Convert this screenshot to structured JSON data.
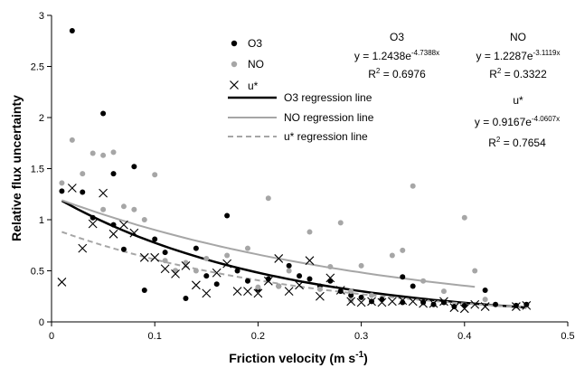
{
  "chart_data": {
    "type": "scatter",
    "xlabel": "Friction velocity (m s",
    "xlabel_sup": "-1",
    "xlabel_end": ")",
    "ylabel": "Relative flux uncertainty",
    "xlim": [
      0,
      0.5
    ],
    "ylim": [
      0,
      3
    ],
    "x_ticks": [
      "0",
      "0.1",
      "0.2",
      "0.3",
      "0.4",
      "0.5"
    ],
    "y_ticks": [
      "0",
      "0.5",
      "1",
      "1.5",
      "2",
      "2.5",
      "3"
    ],
    "grid": false,
    "legend_position": "top-center",
    "series": [
      {
        "name": "O3",
        "marker": "filled-circle",
        "color": "#000000",
        "points": [
          [
            0.01,
            1.28
          ],
          [
            0.02,
            2.85
          ],
          [
            0.03,
            1.27
          ],
          [
            0.04,
            1.02
          ],
          [
            0.05,
            2.04
          ],
          [
            0.06,
            1.45
          ],
          [
            0.06,
            0.95
          ],
          [
            0.07,
            0.71
          ],
          [
            0.08,
            1.52
          ],
          [
            0.09,
            0.31
          ],
          [
            0.1,
            0.81
          ],
          [
            0.11,
            0.68
          ],
          [
            0.12,
            0.5
          ],
          [
            0.13,
            0.23
          ],
          [
            0.14,
            0.72
          ],
          [
            0.15,
            0.45
          ],
          [
            0.16,
            0.37
          ],
          [
            0.17,
            1.04
          ],
          [
            0.18,
            0.5
          ],
          [
            0.19,
            0.4
          ],
          [
            0.2,
            0.32
          ],
          [
            0.21,
            0.42
          ],
          [
            0.22,
            0.35
          ],
          [
            0.23,
            0.55
          ],
          [
            0.24,
            0.45
          ],
          [
            0.25,
            0.42
          ],
          [
            0.26,
            0.35
          ],
          [
            0.27,
            0.4
          ],
          [
            0.28,
            0.3
          ],
          [
            0.29,
            0.26
          ],
          [
            0.3,
            0.24
          ],
          [
            0.31,
            0.2
          ],
          [
            0.32,
            0.22
          ],
          [
            0.34,
            0.19
          ],
          [
            0.35,
            0.35
          ],
          [
            0.36,
            0.19
          ],
          [
            0.37,
            0.17
          ],
          [
            0.38,
            0.19
          ],
          [
            0.39,
            0.15
          ],
          [
            0.4,
            0.16
          ],
          [
            0.42,
            0.31
          ],
          [
            0.43,
            0.17
          ],
          [
            0.45,
            0.16
          ],
          [
            0.46,
            0.17
          ],
          [
            0.34,
            0.44
          ]
        ]
      },
      {
        "name": "NO",
        "marker": "filled-circle",
        "color": "#a6a6a6",
        "points": [
          [
            0.01,
            1.36
          ],
          [
            0.02,
            1.78
          ],
          [
            0.03,
            1.45
          ],
          [
            0.04,
            1.65
          ],
          [
            0.05,
            1.1
          ],
          [
            0.05,
            1.63
          ],
          [
            0.06,
            1.66
          ],
          [
            0.07,
            1.13
          ],
          [
            0.08,
            1.1
          ],
          [
            0.09,
            1.0
          ],
          [
            0.1,
            1.44
          ],
          [
            0.11,
            0.6
          ],
          [
            0.12,
            0.5
          ],
          [
            0.13,
            0.58
          ],
          [
            0.14,
            0.5
          ],
          [
            0.15,
            0.62
          ],
          [
            0.17,
            0.65
          ],
          [
            0.19,
            0.72
          ],
          [
            0.2,
            0.34
          ],
          [
            0.21,
            1.21
          ],
          [
            0.22,
            0.35
          ],
          [
            0.23,
            0.5
          ],
          [
            0.25,
            0.88
          ],
          [
            0.26,
            0.32
          ],
          [
            0.27,
            0.54
          ],
          [
            0.28,
            0.97
          ],
          [
            0.29,
            0.3
          ],
          [
            0.3,
            0.55
          ],
          [
            0.31,
            0.26
          ],
          [
            0.33,
            0.65
          ],
          [
            0.34,
            0.7
          ],
          [
            0.35,
            1.33
          ],
          [
            0.36,
            0.4
          ],
          [
            0.38,
            0.3
          ],
          [
            0.4,
            1.02
          ],
          [
            0.41,
            0.5
          ],
          [
            0.42,
            0.22
          ],
          [
            0.29,
            0.21
          ]
        ]
      },
      {
        "name": "u*",
        "marker": "x",
        "color": "#000000",
        "points": [
          [
            0.01,
            0.39
          ],
          [
            0.02,
            1.31
          ],
          [
            0.03,
            0.72
          ],
          [
            0.04,
            0.96
          ],
          [
            0.05,
            1.26
          ],
          [
            0.06,
            0.86
          ],
          [
            0.07,
            0.95
          ],
          [
            0.08,
            0.87
          ],
          [
            0.09,
            0.63
          ],
          [
            0.1,
            0.63
          ],
          [
            0.11,
            0.52
          ],
          [
            0.12,
            0.47
          ],
          [
            0.13,
            0.55
          ],
          [
            0.14,
            0.36
          ],
          [
            0.15,
            0.28
          ],
          [
            0.16,
            0.48
          ],
          [
            0.17,
            0.57
          ],
          [
            0.18,
            0.3
          ],
          [
            0.19,
            0.3
          ],
          [
            0.2,
            0.28
          ],
          [
            0.21,
            0.4
          ],
          [
            0.22,
            0.62
          ],
          [
            0.23,
            0.3
          ],
          [
            0.24,
            0.36
          ],
          [
            0.25,
            0.6
          ],
          [
            0.26,
            0.25
          ],
          [
            0.27,
            0.43
          ],
          [
            0.28,
            0.31
          ],
          [
            0.29,
            0.2
          ],
          [
            0.3,
            0.19
          ],
          [
            0.31,
            0.2
          ],
          [
            0.32,
            0.19
          ],
          [
            0.33,
            0.2
          ],
          [
            0.34,
            0.21
          ],
          [
            0.35,
            0.2
          ],
          [
            0.36,
            0.18
          ],
          [
            0.37,
            0.18
          ],
          [
            0.38,
            0.2
          ],
          [
            0.39,
            0.14
          ],
          [
            0.4,
            0.13
          ],
          [
            0.41,
            0.17
          ],
          [
            0.42,
            0.15
          ],
          [
            0.45,
            0.15
          ],
          [
            0.46,
            0.16
          ]
        ]
      }
    ],
    "regression_lines": [
      {
        "name": "O3 regression line",
        "color": "#000000",
        "style": "solid",
        "width": 2.5,
        "a": 1.2438,
        "b": -4.7388,
        "x_range": [
          0.01,
          0.46
        ]
      },
      {
        "name": "NO regression line",
        "color": "#a6a6a6",
        "style": "solid",
        "width": 2,
        "a": 1.2287,
        "b": -3.1119,
        "x_range": [
          0.01,
          0.41
        ]
      },
      {
        "name": "u* regression line",
        "color": "#a6a6a6",
        "style": "dashed",
        "width": 2,
        "a": 0.9167,
        "b": -4.0607,
        "x_range": [
          0.01,
          0.46
        ]
      }
    ],
    "equations": {
      "o3": {
        "title": "O3",
        "eq": "y = 1.2438e",
        "exp": "-4.7388x",
        "r2_label": "R",
        "r2_sup": "2",
        "r2_value": " = 0.6976"
      },
      "no": {
        "title": "NO",
        "eq": "y = 1.2287e",
        "exp": "-3.1119x",
        "r2_label": "R",
        "r2_sup": "2",
        "r2_value": " = 0.3322"
      },
      "ustar": {
        "title": "u*",
        "eq": "y = 0.9167e",
        "exp": "-4.0607x",
        "r2_label": "R",
        "r2_sup": "2",
        "r2_value": " = 0.7654"
      }
    }
  }
}
